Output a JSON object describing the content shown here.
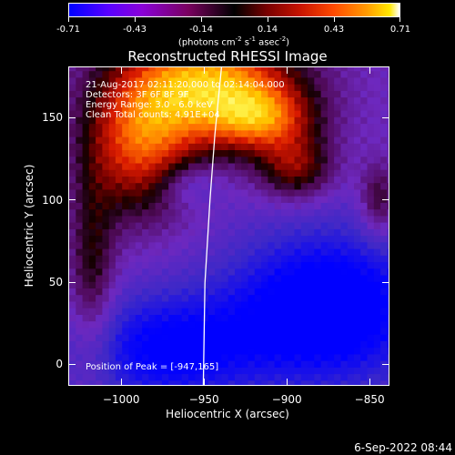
{
  "colorbar": {
    "tick_labels": [
      "-0.71",
      "-0.43",
      "-0.14",
      "0.14",
      "0.43",
      "0.71"
    ],
    "units": {
      "prefix": "(photons cm",
      "exp1": "-2",
      "mid1": " s",
      "exp2": "-1",
      "mid2": " asec",
      "exp3": "-2",
      "suffix": ")"
    },
    "colors": [
      "#0000ff",
      "#8a00d8",
      "#000000",
      "#c81400",
      "#ff9a00",
      "#ffffff"
    ]
  },
  "chart_data": {
    "type": "heatmap",
    "title": "Reconstructed RHESSI Image",
    "xlabel": "Heliocentric X (arcsec)",
    "ylabel": "Heliocentric Y (arcsec)",
    "xlim": [
      -1032,
      -838
    ],
    "ylim": [
      -13,
      181
    ],
    "x_ticks": [
      -1000,
      -950,
      -900,
      -850
    ],
    "x_tick_labels": [
      "−1000",
      "−950",
      "−900",
      "−850"
    ],
    "y_ticks": [
      0,
      50,
      100,
      150
    ],
    "y_tick_labels": [
      "0",
      "50",
      "100",
      "150"
    ],
    "color_range": [
      -0.71,
      0.71
    ],
    "peak": {
      "x": -947,
      "y": 165
    },
    "limb": [
      [
        -951,
        -13
      ],
      [
        -950,
        50
      ],
      [
        -947,
        100
      ],
      [
        -944,
        140
      ],
      [
        -940,
        181
      ]
    ],
    "sources": [
      {
        "x": -948,
        "y": 172,
        "sx": 38,
        "sy": 26,
        "amp": 0.78
      },
      {
        "x": -990,
        "y": 132,
        "sx": 24,
        "sy": 30,
        "amp": 0.55
      },
      {
        "x": -915,
        "y": 150,
        "sx": 22,
        "sy": 14,
        "amp": 0.45
      },
      {
        "x": -895,
        "y": 120,
        "sx": 16,
        "sy": 14,
        "amp": 0.4
      },
      {
        "x": -1018,
        "y": 55,
        "sx": 10,
        "sy": 40,
        "amp": 0.3
      },
      {
        "x": -845,
        "y": 100,
        "sx": 8,
        "sy": 16,
        "amp": 0.3
      },
      {
        "x": -960,
        "y": 110,
        "sx": 14,
        "sy": 10,
        "amp": -0.2
      },
      {
        "x": -875,
        "y": 35,
        "sx": 45,
        "sy": 35,
        "amp": -0.55
      },
      {
        "x": -975,
        "y": 10,
        "sx": 40,
        "sy": 25,
        "amp": -0.42
      }
    ],
    "annotations": {
      "time_range": "21-Aug-2017 02:11:20.000 to 02:14:04.000",
      "detectors": "Detectors: 3F 6F 8F 9F",
      "energy_range": "Energy Range: 3.0 - 6.0 keV",
      "clean": "Clean    Total counts: 4.91E+04",
      "peak": "Position of Peak = [-947,165]"
    }
  },
  "footer": {
    "timestamp": "6-Sep-2022 08:44"
  }
}
